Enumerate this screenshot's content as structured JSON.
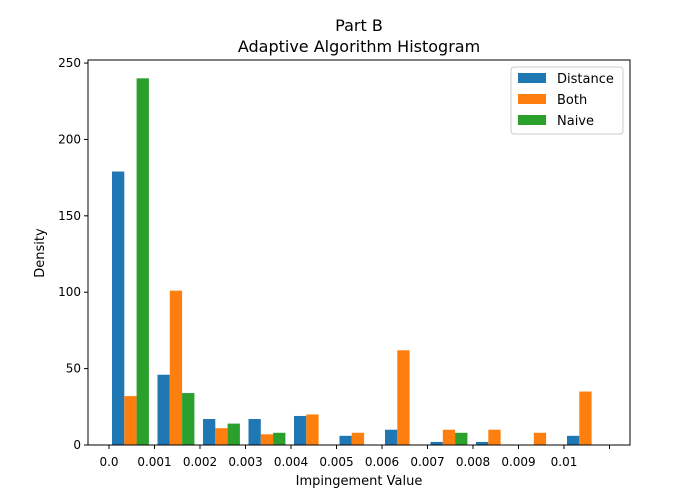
{
  "chart_data": {
    "type": "bar",
    "title": "Part B",
    "subtitle": "Adaptive Algorithm Histogram",
    "xlabel": "Impingement Value",
    "ylabel": "Density",
    "ylim": [
      0,
      252
    ],
    "yticks": [
      0,
      50,
      100,
      150,
      200,
      250
    ],
    "x_tick_labels": [
      "0.0",
      "0.001",
      "0.002",
      "0.003",
      "0.004",
      "0.005",
      "0.006",
      "0.007",
      "0.008",
      "0.009",
      "0.01",
      ""
    ],
    "bins": 11,
    "legend_position": "top-right",
    "series": [
      {
        "name": "Distance",
        "color": "#1f77b4",
        "values": [
          179,
          46,
          17,
          17,
          19,
          6,
          10,
          2,
          2,
          0,
          6
        ]
      },
      {
        "name": "Both",
        "color": "#ff7f0e",
        "values": [
          32,
          101,
          11,
          7,
          20,
          8,
          62,
          10,
          10,
          8,
          35
        ]
      },
      {
        "name": "Naive",
        "color": "#2ca02c",
        "values": [
          240,
          34,
          14,
          8,
          0,
          0,
          0,
          8,
          0,
          0,
          0
        ]
      }
    ]
  }
}
